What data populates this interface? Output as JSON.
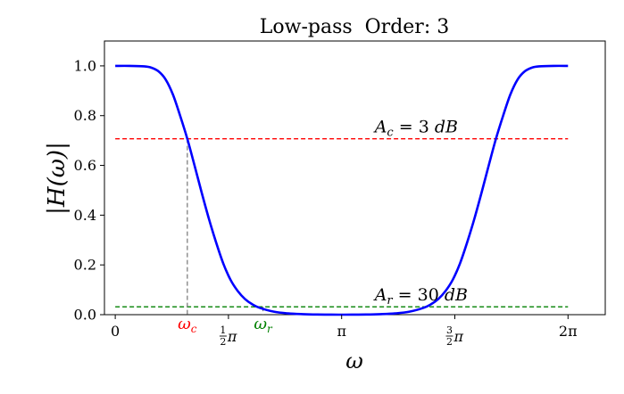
{
  "chart_data": {
    "type": "line",
    "title": "Low-pass  Order: 3",
    "xlabel": "ω",
    "ylabel": "|H(ω)|",
    "xlim": [
      -0.15,
      6.8
    ],
    "ylim": [
      0,
      1.1
    ],
    "grid": false,
    "y_ticks": [
      {
        "value": 0.0,
        "label": "0.0"
      },
      {
        "value": 0.2,
        "label": "0.2"
      },
      {
        "value": 0.4,
        "label": "0.4"
      },
      {
        "value": 0.6,
        "label": "0.6"
      },
      {
        "value": 0.8,
        "label": "0.8"
      },
      {
        "value": 1.0,
        "label": "1.0"
      }
    ],
    "x_ticks": [
      {
        "value": 0,
        "label": "0"
      },
      {
        "value": 1.5708,
        "label": "π",
        "fraction": "1/2"
      },
      {
        "value": 3.1416,
        "label": "π"
      },
      {
        "value": 4.7124,
        "label": "π",
        "fraction": "3/2"
      },
      {
        "value": 6.2832,
        "label": "2π"
      }
    ],
    "series": [
      {
        "color": "#0000ff",
        "x": [
          0.0,
          0.2,
          0.4,
          0.5,
          0.6,
          0.7,
          0.8,
          0.9,
          1.0,
          1.1,
          1.2,
          1.3,
          1.4,
          1.5,
          1.6,
          1.7,
          1.8,
          1.9,
          2.0,
          2.2,
          2.4,
          2.6,
          2.8,
          3.0,
          3.1416,
          3.283,
          3.483,
          3.683,
          3.883,
          4.083,
          4.283,
          4.383,
          4.483,
          4.583,
          4.683,
          4.783,
          4.883,
          4.983,
          5.083,
          5.183,
          5.283,
          5.383,
          5.483,
          5.583,
          5.683,
          5.783,
          5.883,
          6.083,
          6.2832
        ],
        "y": [
          1.0,
          1.0,
          0.998,
          0.993,
          0.978,
          0.945,
          0.885,
          0.8,
          0.707,
          0.6,
          0.49,
          0.385,
          0.29,
          0.205,
          0.14,
          0.095,
          0.063,
          0.042,
          0.028,
          0.012,
          0.005,
          0.002,
          0.0005,
          0.0001,
          0.0,
          0.0001,
          0.0005,
          0.002,
          0.005,
          0.012,
          0.028,
          0.042,
          0.063,
          0.095,
          0.14,
          0.205,
          0.29,
          0.385,
          0.49,
          0.6,
          0.707,
          0.8,
          0.885,
          0.945,
          0.978,
          0.993,
          0.998,
          1.0,
          1.0
        ]
      }
    ],
    "reference_lines": [
      {
        "y": 0.707,
        "color": "#ff0000",
        "label": "A_c = 3 dB",
        "label_x": 3.6
      },
      {
        "y": 0.0316,
        "color": "#008000",
        "label": "A_r = 30 dB",
        "label_x": 3.6
      }
    ],
    "markers": [
      {
        "x": 1.0,
        "y": 0.707,
        "color": "#ff0000",
        "label": "ω",
        "sub": "c"
      },
      {
        "x": 2.05,
        "y": 0.0316,
        "color": "#008000",
        "label": "ω",
        "sub": "r"
      }
    ]
  }
}
